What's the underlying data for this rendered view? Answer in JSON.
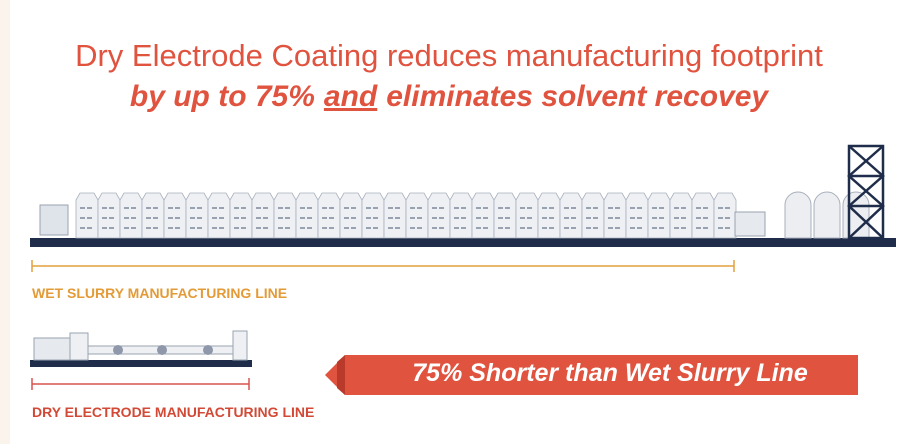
{
  "title": {
    "line1": "Dry Electrode Coating reduces manufacturing footprint",
    "line2_start": "by up to 75%",
    "line2_emphasis": "and",
    "line2_end": "eliminates solvent recovey"
  },
  "wet_line": {
    "label": "WET SLURRY MANUFACTURING LINE"
  },
  "dry_line": {
    "label": "DRY ELECTRODE MANUFACTURING LINE"
  },
  "callout": {
    "text": "75% Shorter than Wet Slurry Line"
  }
}
